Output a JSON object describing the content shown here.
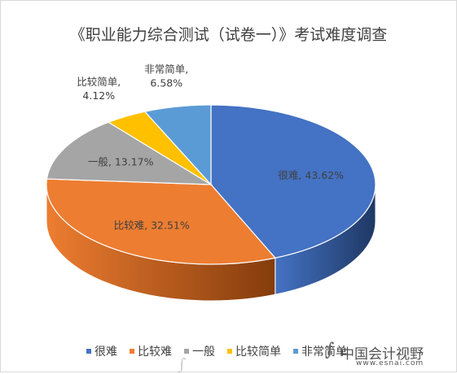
{
  "chart_data": {
    "type": "pie",
    "title": "《职业能力综合测试（试卷一）》考试难度调查",
    "categories": [
      "很难",
      "比较难",
      "一般",
      "比较简单",
      "非常简单"
    ],
    "values": [
      43.62,
      32.51,
      13.17,
      4.12,
      6.58
    ],
    "colors": [
      "#4472C4",
      "#ED7D31",
      "#A5A5A5",
      "#FFC000",
      "#5B9BD5"
    ],
    "dark_colors": [
      "#1F3864",
      "#843C0C",
      "#525252",
      "#7F6000",
      "#1F4E79"
    ],
    "data_labels": [
      {
        "name": "很难",
        "value": "43.62%"
      },
      {
        "name": "比较难",
        "value": "32.51%"
      },
      {
        "name": "一般",
        "value": "13.17%"
      },
      {
        "name": "比较简单",
        "value": "4.12%"
      },
      {
        "name": "非常简单",
        "value": "6.58%"
      }
    ],
    "legend_position": "bottom",
    "three_d": true
  },
  "watermark": {
    "logo": "∫",
    "text": "中国会计视野",
    "url": "www.esnai.com"
  }
}
